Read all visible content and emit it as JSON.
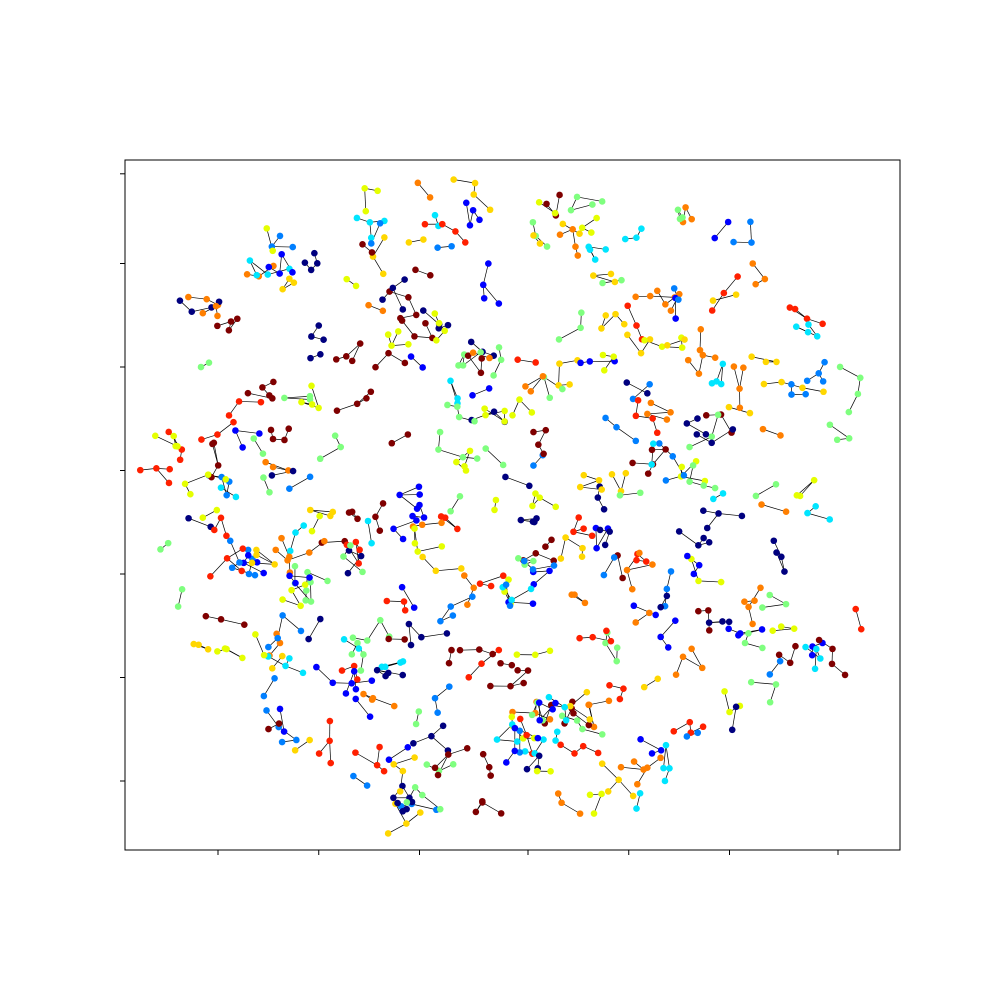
{
  "chart_data": {
    "type": "scatter",
    "subtype": "graph-embedding",
    "title": "",
    "xlabel": "",
    "ylabel": "",
    "xlim": [
      0,
      100
    ],
    "ylim": [
      0,
      100
    ],
    "x_tick_values": [
      12,
      25,
      38,
      52,
      65,
      78,
      92
    ],
    "y_tick_values": [
      10,
      25,
      40,
      55,
      70,
      85,
      98
    ],
    "tick_labels_shown": false,
    "grid": false,
    "legend": "none",
    "colormap": "jet",
    "edge_color": "#000000",
    "color_scale": [
      "#00007f",
      "#0000ff",
      "#007fff",
      "#00e5ff",
      "#7fff7f",
      "#e5ff00",
      "#ffd700",
      "#ff7f00",
      "#ff2000",
      "#7f0000"
    ],
    "clusters": [
      {
        "x": 20,
        "y": 89,
        "color": "#007fff",
        "n": 3
      },
      {
        "x": 32,
        "y": 86,
        "color": "#ffd700",
        "n": 3
      },
      {
        "x": 40,
        "y": 92,
        "color": "#00e5ff",
        "n": 2
      },
      {
        "x": 45,
        "y": 95,
        "color": "#ffd700",
        "n": 4
      },
      {
        "x": 53,
        "y": 89,
        "color": "#7fff7f",
        "n": 3
      },
      {
        "x": 60,
        "y": 87,
        "color": "#00e5ff",
        "n": 4
      },
      {
        "x": 72,
        "y": 91,
        "color": "#ff7f00",
        "n": 3
      },
      {
        "x": 81,
        "y": 85,
        "color": "#ff7f00",
        "n": 3
      },
      {
        "x": 88,
        "y": 77,
        "color": "#ff2000",
        "n": 4
      },
      {
        "x": 86,
        "y": 66,
        "color": "#007fff",
        "n": 3
      },
      {
        "x": 12,
        "y": 79,
        "color": "#ff7f00",
        "n": 3
      },
      {
        "x": 14,
        "y": 62,
        "color": "#ff2000",
        "n": 3
      },
      {
        "x": 25,
        "y": 76,
        "color": "#00007f",
        "n": 3
      },
      {
        "x": 34,
        "y": 72,
        "color": "#7f0000",
        "n": 3
      },
      {
        "x": 42,
        "y": 68,
        "color": "#00e5ff",
        "n": 3
      },
      {
        "x": 50,
        "y": 63,
        "color": "#e5ff00",
        "n": 3
      },
      {
        "x": 56,
        "y": 74,
        "color": "#7fff7f",
        "n": 3
      },
      {
        "x": 66,
        "y": 76,
        "color": "#ff2000",
        "n": 3
      },
      {
        "x": 75,
        "y": 63,
        "color": "#7f0000",
        "n": 3
      },
      {
        "x": 84,
        "y": 53,
        "color": "#7fff7f",
        "n": 2
      },
      {
        "x": 68,
        "y": 58,
        "color": "#7f0000",
        "n": 5
      },
      {
        "x": 64,
        "y": 52,
        "color": "#ffd700",
        "n": 3
      },
      {
        "x": 44,
        "y": 55,
        "color": "#e5ff00",
        "n": 4
      },
      {
        "x": 38,
        "y": 50,
        "color": "#0000ff",
        "n": 3
      },
      {
        "x": 30,
        "y": 48,
        "color": "#7f0000",
        "n": 3
      },
      {
        "x": 22,
        "y": 46,
        "color": "#00e5ff",
        "n": 3
      },
      {
        "x": 16,
        "y": 40,
        "color": "#007fff",
        "n": 3
      },
      {
        "x": 24,
        "y": 36,
        "color": "#7fff7f",
        "n": 4
      },
      {
        "x": 30,
        "y": 30,
        "color": "#7fff7f",
        "n": 4
      },
      {
        "x": 36,
        "y": 36,
        "color": "#ff2000",
        "n": 3
      },
      {
        "x": 45,
        "y": 38,
        "color": "#ff7f00",
        "n": 3
      },
      {
        "x": 53,
        "y": 43,
        "color": "#7f0000",
        "n": 3
      },
      {
        "x": 58,
        "y": 37,
        "color": "#ff7f00",
        "n": 3
      },
      {
        "x": 66,
        "y": 42,
        "color": "#ff2000",
        "n": 3
      },
      {
        "x": 74,
        "y": 39,
        "color": "#e5ff00",
        "n": 3
      },
      {
        "x": 82,
        "y": 38,
        "color": "#ff7f00",
        "n": 3
      },
      {
        "x": 90,
        "y": 30,
        "color": "#0000ff",
        "n": 3
      },
      {
        "x": 95,
        "y": 32,
        "color": "#ff2000",
        "n": 2
      },
      {
        "x": 80,
        "y": 30,
        "color": "#7fff7f",
        "n": 3
      },
      {
        "x": 72,
        "y": 28,
        "color": "#ff7f00",
        "n": 4
      },
      {
        "x": 62,
        "y": 30,
        "color": "#7fff7f",
        "n": 4
      },
      {
        "x": 52,
        "y": 26,
        "color": "#7f0000",
        "n": 5
      },
      {
        "x": 46,
        "y": 27,
        "color": "#ff2000",
        "n": 3
      },
      {
        "x": 40,
        "y": 22,
        "color": "#007fff",
        "n": 3
      },
      {
        "x": 50,
        "y": 20,
        "color": "#ff7f00",
        "n": 4
      },
      {
        "x": 55,
        "y": 21,
        "color": "#7f0000",
        "n": 4
      },
      {
        "x": 50,
        "y": 18,
        "color": "#e5ff00",
        "n": 4
      },
      {
        "x": 51,
        "y": 19,
        "color": "#ff2000",
        "n": 3
      },
      {
        "x": 48,
        "y": 16,
        "color": "#00e5ff",
        "n": 3
      },
      {
        "x": 54,
        "y": 16,
        "color": "#00e5ff",
        "n": 3
      },
      {
        "x": 58,
        "y": 14,
        "color": "#ff2000",
        "n": 4
      },
      {
        "x": 64,
        "y": 12,
        "color": "#ff7f00",
        "n": 3
      },
      {
        "x": 68,
        "y": 14,
        "color": "#0000ff",
        "n": 3
      },
      {
        "x": 73,
        "y": 17,
        "color": "#ff2000",
        "n": 4
      },
      {
        "x": 78,
        "y": 20,
        "color": "#e5ff00",
        "n": 3
      },
      {
        "x": 84,
        "y": 24,
        "color": "#7fff7f",
        "n": 3
      },
      {
        "x": 60,
        "y": 8,
        "color": "#e5ff00",
        "n": 3
      },
      {
        "x": 66,
        "y": 6,
        "color": "#00e5ff",
        "n": 2
      },
      {
        "x": 47,
        "y": 12,
        "color": "#7f0000",
        "n": 3
      },
      {
        "x": 32,
        "y": 22,
        "color": "#ff7f00",
        "n": 4
      },
      {
        "x": 28,
        "y": 26,
        "color": "#ff2000",
        "n": 3
      },
      {
        "x": 20,
        "y": 30,
        "color": "#ff7f00",
        "n": 3
      }
    ]
  }
}
